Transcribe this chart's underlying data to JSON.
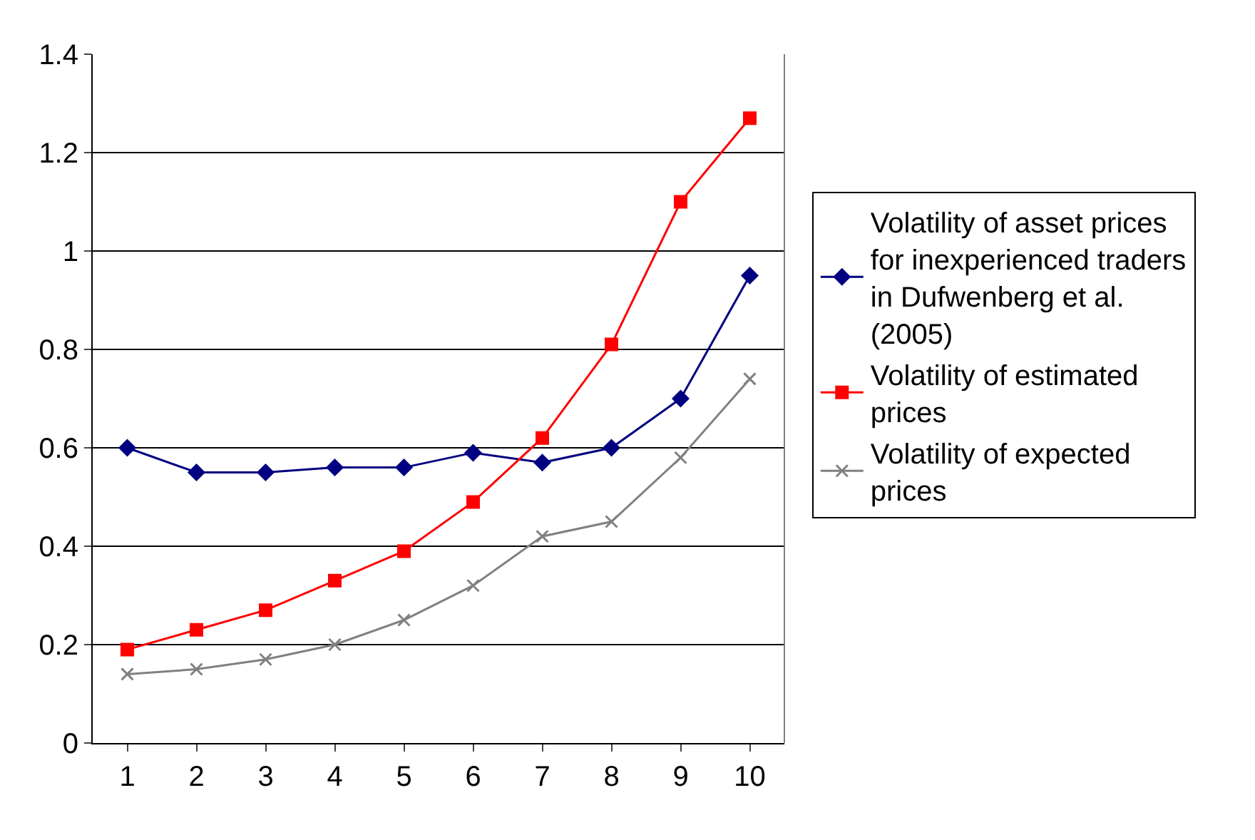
{
  "chart_data": {
    "type": "line",
    "categories": [
      "1",
      "2",
      "3",
      "4",
      "5",
      "6",
      "7",
      "8",
      "9",
      "10"
    ],
    "series": [
      {
        "name": "Volatility of asset prices for inexperienced traders in Dufwenberg et al. (2005)",
        "color": "#000080",
        "marker": "diamond",
        "values": [
          0.6,
          0.55,
          0.55,
          0.56,
          0.56,
          0.59,
          0.57,
          0.6,
          0.7,
          0.95
        ]
      },
      {
        "name": "Volatility of estimated prices",
        "color": "#ff0000",
        "marker": "square",
        "values": [
          0.19,
          0.23,
          0.27,
          0.33,
          0.39,
          0.49,
          0.62,
          0.81,
          1.1,
          1.27
        ]
      },
      {
        "name": "Volatility of expected prices",
        "color": "#808080",
        "marker": "cross",
        "values": [
          0.14,
          0.15,
          0.17,
          0.2,
          0.25,
          0.32,
          0.42,
          0.45,
          0.58,
          0.74
        ]
      }
    ],
    "ylim": [
      0,
      1.4
    ],
    "yticks": [
      0,
      0.2,
      0.4,
      0.6,
      0.8,
      1,
      1.2,
      1.4
    ],
    "grid": "y",
    "legend": "right",
    "line_style": "solid"
  }
}
